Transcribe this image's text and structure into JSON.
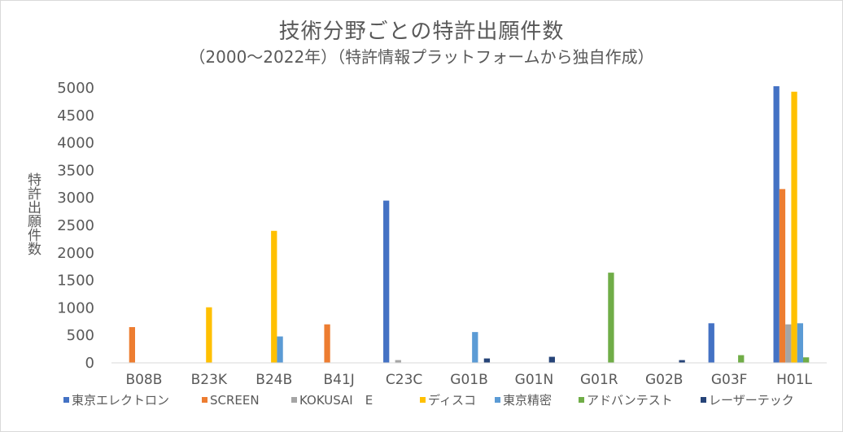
{
  "chart_data": {
    "type": "bar",
    "title": "技術分野ごとの特許出願件数",
    "subtitle": "（2000～2022年）（特許情報プラットフォームから独自作成）",
    "ylabel": "特許出願件数",
    "ylim": [
      0,
      5000
    ],
    "yticks": [
      "0",
      "500",
      "1000",
      "1500",
      "2000",
      "2500",
      "3000",
      "3500",
      "4000",
      "4500",
      "5000"
    ],
    "grid": "off",
    "legend_position": "bottom",
    "categories": [
      "B08B",
      "B23K",
      "B24B",
      "B41J",
      "C23C",
      "G01B",
      "G01N",
      "G01R",
      "G02B",
      "G03F",
      "H01L"
    ],
    "series": [
      {
        "name": "東京エレクトロン",
        "color": "#4472C4",
        "values": [
          0,
          0,
          0,
          0,
          2950,
          0,
          0,
          0,
          0,
          720,
          5030
        ]
      },
      {
        "name": "SCREEN",
        "color": "#ED7D31",
        "values": [
          650,
          0,
          0,
          700,
          0,
          0,
          0,
          0,
          0,
          0,
          3160
        ]
      },
      {
        "name": "KOKUSAI　E",
        "color": "#A5A5A5",
        "values": [
          0,
          0,
          0,
          0,
          50,
          0,
          0,
          0,
          0,
          0,
          700
        ]
      },
      {
        "name": "ディスコ",
        "color": "#FFC000",
        "values": [
          0,
          1010,
          2400,
          0,
          0,
          0,
          0,
          0,
          0,
          0,
          4930
        ]
      },
      {
        "name": "東京精密",
        "color": "#5B9BD5",
        "values": [
          0,
          0,
          480,
          0,
          0,
          560,
          0,
          0,
          0,
          0,
          720
        ]
      },
      {
        "name": "アドバンテスト",
        "color": "#70AD47",
        "values": [
          0,
          0,
          0,
          0,
          0,
          0,
          0,
          1640,
          0,
          140,
          100
        ]
      },
      {
        "name": "レーザーテック",
        "color": "#264478",
        "values": [
          0,
          0,
          0,
          0,
          0,
          80,
          110,
          0,
          50,
          0,
          0
        ]
      }
    ]
  }
}
